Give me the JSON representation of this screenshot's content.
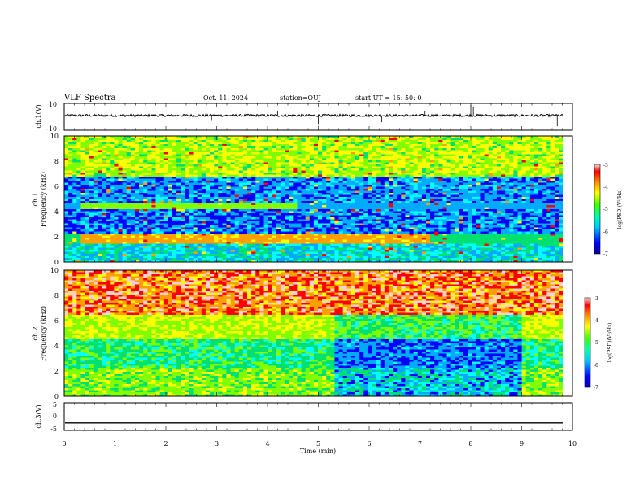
{
  "header": {
    "title": "VLF Spectra",
    "date": "Oct. 11, 2024",
    "station": "station=OUJ",
    "start": "start  UT =   15: 50: 0"
  },
  "chart_data": [
    {
      "type": "line",
      "panel": "waveform-ch1",
      "ylabel": "ch.1(V)",
      "ylim": [
        -10,
        10
      ],
      "y_ticks": [
        10,
        -10
      ],
      "x_range": [
        0,
        10
      ],
      "baseline_value": 1,
      "description_value_range": [
        -1,
        2
      ]
    },
    {
      "type": "heatmap",
      "panel": "spectrogram-ch1",
      "ylabel": "ch.1\nFrequency  (kHz)",
      "ylim": [
        0,
        10
      ],
      "y_ticks": [
        0,
        2,
        4,
        6,
        8,
        10
      ],
      "x_range": [
        0,
        9.82
      ],
      "colorbar": {
        "label": "log(PSD)(V²/Hz)",
        "range": [
          -7,
          -3
        ],
        "ticks": [
          "-3",
          "-4",
          "-5",
          "-6",
          "-7"
        ]
      }
    },
    {
      "type": "heatmap",
      "panel": "spectrogram-ch2",
      "ylabel": "ch.2\nFrequency  (kHz)",
      "ylim": [
        0,
        10
      ],
      "y_ticks": [
        0,
        2,
        4,
        6,
        8,
        10
      ],
      "x_range": [
        0,
        9.82
      ],
      "colorbar": {
        "label": "log(PSD)(V²/Hz)",
        "range": [
          -7,
          -3
        ],
        "ticks": [
          "-3",
          "-4",
          "-5",
          "-6",
          "-7"
        ]
      }
    },
    {
      "type": "line",
      "panel": "waveform-ch3",
      "ylabel": "ch.3(V)",
      "ylim": [
        -5,
        5
      ],
      "y_ticks": [
        5,
        0,
        -5
      ],
      "x_range": [
        0,
        9.82
      ],
      "constant_value": -2.3
    }
  ],
  "x_axis": {
    "label": "Time  (min)",
    "ticks": [
      "0",
      "1",
      "2",
      "3",
      "4",
      "5",
      "6",
      "7",
      "8",
      "9",
      "10"
    ],
    "range": [
      0,
      10
    ]
  },
  "colors": {
    "colormap": [
      "#0000a0",
      "#0000ff",
      "#00aaff",
      "#00ffff",
      "#00e070",
      "#80ff00",
      "#ffff00",
      "#ffa000",
      "#ff0000",
      "#ffd0d0"
    ]
  }
}
